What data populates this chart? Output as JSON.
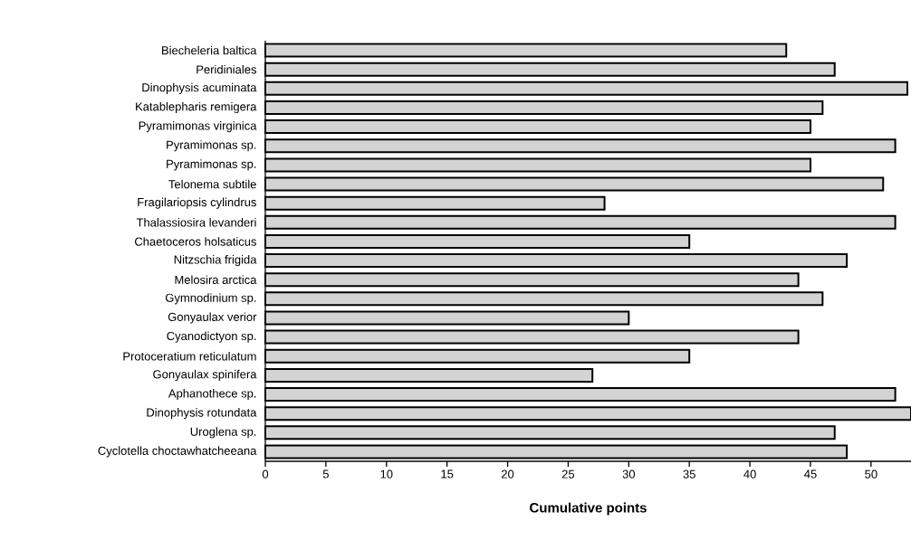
{
  "chart_data": {
    "type": "bar",
    "orientation": "horizontal",
    "xlabel": "**Cumulative points**",
    "categories": [
      "Biecheleria baltica",
      "Peridiniales",
      "Dinophysis acuminata",
      "Katablepharis remigera",
      "Pyramimonas virginica",
      "Pyramimonas sp.",
      "Pyramimonas sp.",
      "Telonema subtile",
      "Fragilariopsis cylindrus",
      "Thalassiosira levanderi",
      "Chaetoceros holsaticus",
      "Nitzschia frigida",
      "Melosira arctica",
      "Gymnodinium sp.",
      "Gonyaulax verior",
      "Cyanodictyon sp.",
      "Protoceratium reticulatum",
      "Gonyaulax spinifera",
      "Aphanothece sp.",
      "Dinophysis rotundata",
      "Uroglena sp.",
      "Cyclotella choctawhatcheeana"
    ],
    "values": [
      43,
      47,
      53,
      46,
      45,
      52,
      45,
      51,
      28,
      52,
      35,
      48,
      44,
      46,
      30,
      44,
      35,
      27,
      52,
      53.3,
      47,
      48
    ],
    "color": "#d3d3d3",
    "xlim": [
      0,
      53.3
    ],
    "xticks": [
      0,
      5,
      10,
      15,
      20,
      25,
      30,
      35,
      40,
      45,
      50
    ]
  }
}
